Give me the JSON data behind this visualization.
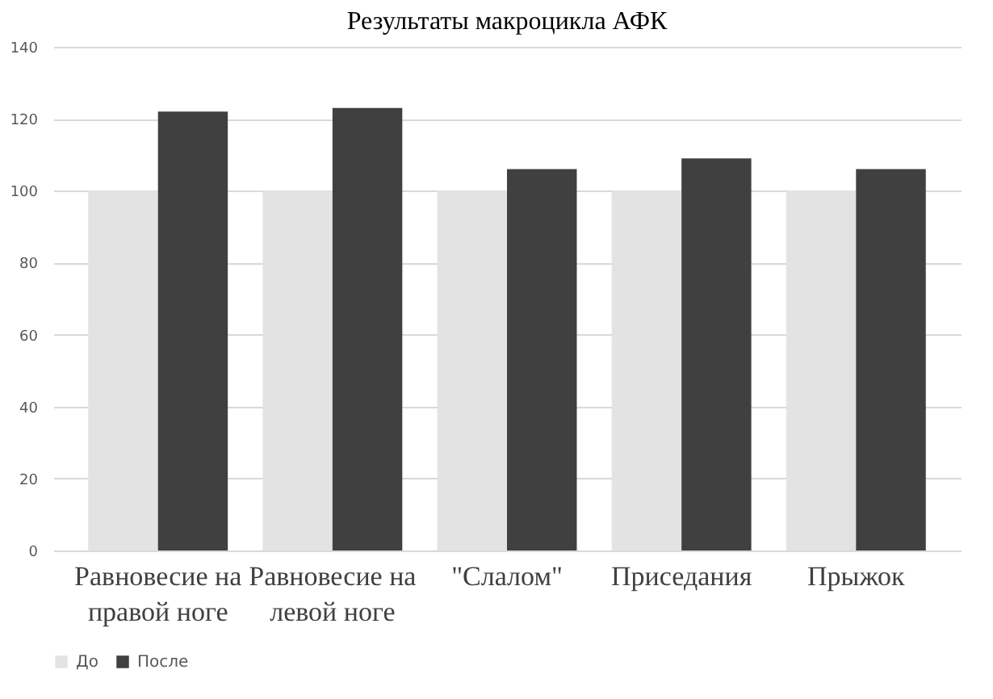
{
  "chart_data": {
    "type": "bar",
    "title": "Результаты макроцикла АФК",
    "categories": [
      "Равновесие на правой ноге",
      "Равновесие на левой ноге",
      "\"Слалом\"",
      "Приседания",
      "Прыжок"
    ],
    "series": [
      {
        "name": "До",
        "color": "#e3e3e3",
        "values": [
          100,
          100,
          100,
          100,
          100
        ]
      },
      {
        "name": "После",
        "color": "#404040",
        "values": [
          122,
          123,
          106,
          109,
          106
        ]
      }
    ],
    "ylim": [
      0,
      140
    ],
    "yticks": [
      0,
      20,
      40,
      60,
      80,
      100,
      120,
      140
    ],
    "grid": "y",
    "legend": "bottom"
  }
}
